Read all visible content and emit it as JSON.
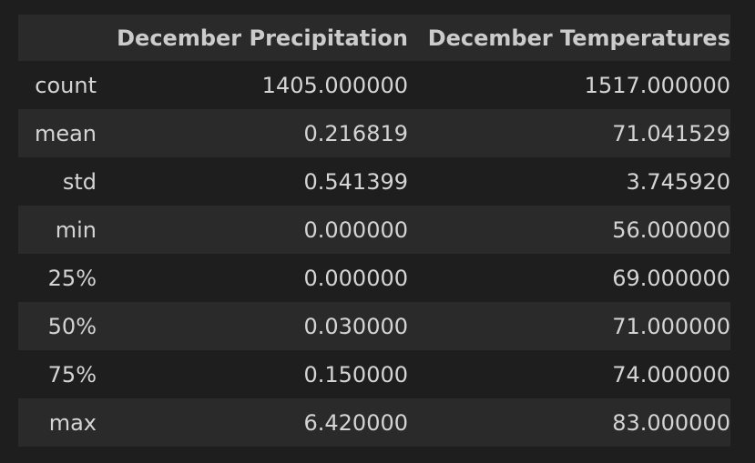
{
  "table": {
    "headers": [
      "",
      "December Precipitation",
      "December Temperatures"
    ],
    "rows": [
      {
        "label": "count",
        "precip": "1405.000000",
        "temp": "1517.000000"
      },
      {
        "label": "mean",
        "precip": "0.216819",
        "temp": "71.041529"
      },
      {
        "label": "std",
        "precip": "0.541399",
        "temp": "3.745920"
      },
      {
        "label": "min",
        "precip": "0.000000",
        "temp": "56.000000"
      },
      {
        "label": "25%",
        "precip": "0.000000",
        "temp": "69.000000"
      },
      {
        "label": "50%",
        "precip": "0.030000",
        "temp": "71.000000"
      },
      {
        "label": "75%",
        "precip": "0.150000",
        "temp": "74.000000"
      },
      {
        "label": "max",
        "precip": "6.420000",
        "temp": "83.000000"
      }
    ]
  },
  "colors": {
    "background": "#1e1e1e",
    "stripe": "#2a2a2a",
    "text": "#d4d4d4"
  }
}
